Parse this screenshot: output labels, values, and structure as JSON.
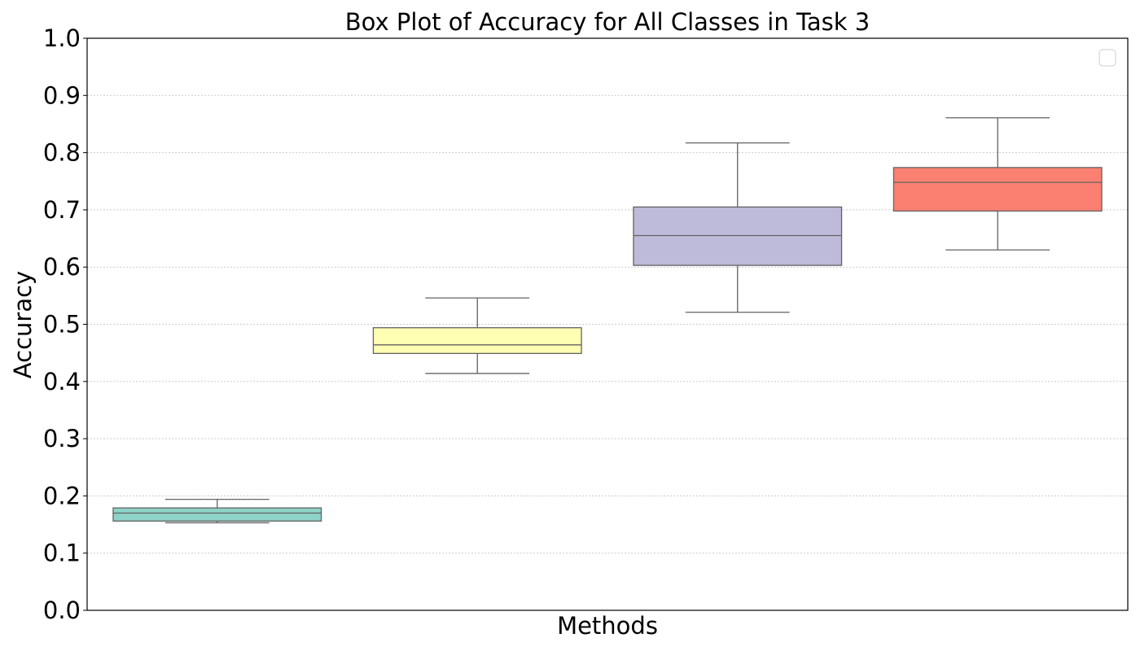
{
  "chart_data": {
    "type": "box",
    "title": "Box Plot of Accuracy for All Classes in Task 3",
    "xlabel": "Methods",
    "ylabel": "Accuracy",
    "ylim": [
      0.0,
      1.0
    ],
    "yticks": [
      "0.0",
      "0.1",
      "0.2",
      "0.3",
      "0.4",
      "0.5",
      "0.6",
      "0.7",
      "0.8",
      "0.9",
      "1.0"
    ],
    "grid": "horizontal dotted",
    "legend": "top-right (empty)",
    "boxes": [
      {
        "color": "#8dd3c7",
        "whisker_low": 0.153,
        "q1": 0.156,
        "median": 0.17,
        "q3": 0.179,
        "whisker_high": 0.194
      },
      {
        "color": "#ffffb3",
        "whisker_low": 0.414,
        "q1": 0.449,
        "median": 0.464,
        "q3": 0.494,
        "whisker_high": 0.546
      },
      {
        "color": "#bebada",
        "whisker_low": 0.521,
        "q1": 0.603,
        "median": 0.655,
        "q3": 0.705,
        "whisker_high": 0.817
      },
      {
        "color": "#fb8072",
        "whisker_low": 0.63,
        "q1": 0.698,
        "median": 0.748,
        "q3": 0.774,
        "whisker_high": 0.861
      }
    ]
  }
}
